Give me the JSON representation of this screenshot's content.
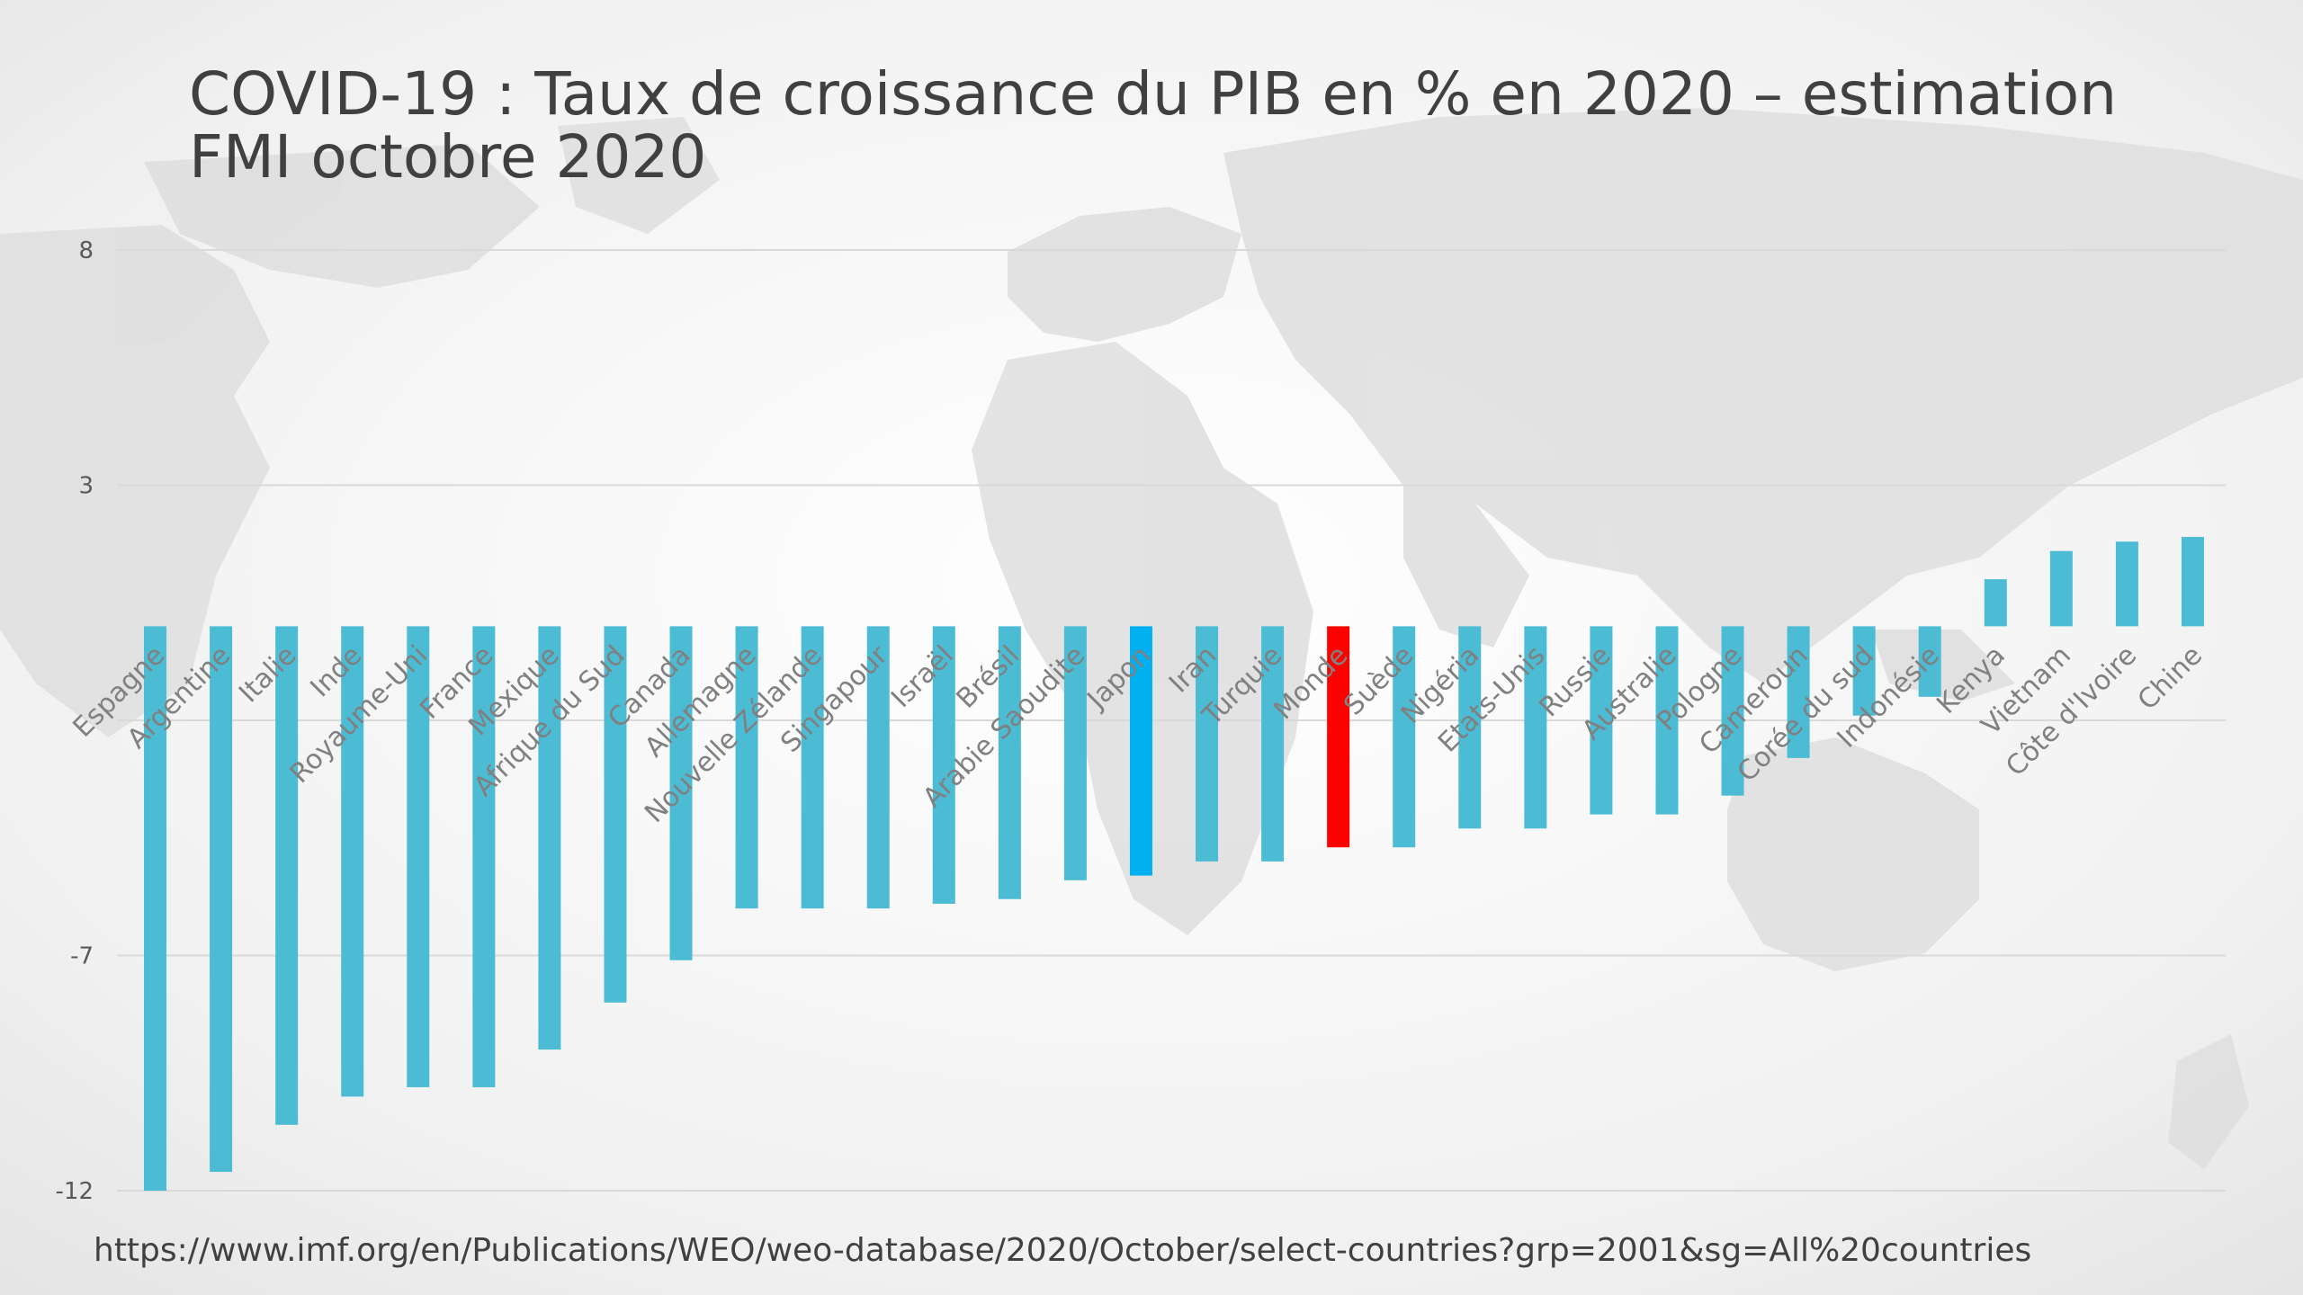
{
  "slide": {
    "title": "COVID-19 : Taux de croissance du PIB en % en 2020 – estimation FMI octobre 2020",
    "source": "https://www.imf.org/en/Publications/WEO/weo-database/2020/October/select-countries?grp=2001&sg=All%20countries"
  },
  "chart_data": {
    "type": "bar",
    "title": "COVID-19 : Taux de croissance du PIB en % en 2020 – estimation FMI octobre 2020",
    "xlabel": "",
    "ylabel": "",
    "ylim": [
      -12,
      8
    ],
    "yticks": [
      -12,
      -7,
      3,
      8
    ],
    "grid": true,
    "legend": "none",
    "categories": [
      "Espagne",
      "Argentine",
      "Italie",
      "Inde",
      "Royaume-Uni",
      "France",
      "Mexique",
      "Afrique du Sud",
      "Canada",
      "Allemagne",
      "Nouvelle Zélande",
      "Singapour",
      "Israël",
      "Brésil",
      "Arabie Saoudite",
      "Japon",
      "Iran",
      "Turquie",
      "Monde",
      "Suède",
      "Nigéria",
      "Etats-Unis",
      "Russie",
      "Australie",
      "Pologne",
      "Cameroun",
      "Corée du sud",
      "Indonésie",
      "Kenya",
      "Vietnam",
      "Côte d'Ivoire",
      "Chine"
    ],
    "values": [
      -12.0,
      -11.6,
      -10.6,
      -10.0,
      -9.8,
      -9.8,
      -9.0,
      -8.0,
      -7.1,
      -6.0,
      -6.0,
      -6.0,
      -5.9,
      -5.8,
      -5.4,
      -5.3,
      -5.0,
      -5.0,
      -4.7,
      -4.7,
      -4.3,
      -4.3,
      -4.0,
      -4.0,
      -3.6,
      -2.8,
      -1.9,
      -1.5,
      1.0,
      1.6,
      1.8,
      1.9
    ],
    "colors": {
      "default": "#4bbcd4",
      "highlight_japon": "#00b0f0",
      "highlight_monde": "#ff0000",
      "grid": "#d9d9d9",
      "tick_label": "#595959",
      "category_label": "#808080"
    }
  }
}
